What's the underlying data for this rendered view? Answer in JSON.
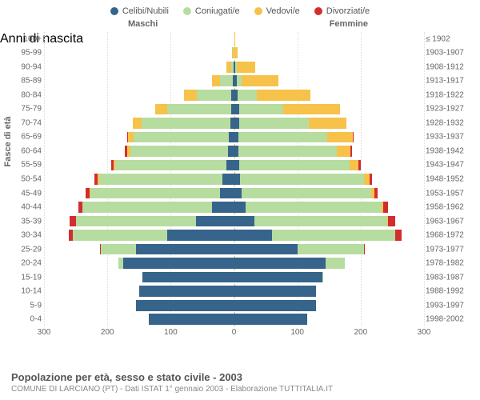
{
  "legend": [
    {
      "label": "Celibi/Nubili",
      "color": "#36648b"
    },
    {
      "label": "Coniugati/e",
      "color": "#b7dca0"
    },
    {
      "label": "Vedovi/e",
      "color": "#f7c24a"
    },
    {
      "label": "Divorziati/e",
      "color": "#d22e2e"
    }
  ],
  "header": {
    "male": "Maschi",
    "female": "Femmine"
  },
  "axis": {
    "left_title": "Fasce di età",
    "right_title": "Anni di nascita",
    "x_max": 300,
    "x_ticks_left": [
      "300",
      "200",
      "100",
      "0"
    ],
    "x_ticks_right": [
      "0",
      "100",
      "200",
      "300"
    ]
  },
  "colors": {
    "single": "#36648b",
    "married": "#b7dca0",
    "widowed": "#f7c24a",
    "divorced": "#d22e2e",
    "grid": "#dddddd",
    "center": "#f7b500"
  },
  "rows": [
    {
      "age": "100+",
      "birth": "≤ 1902",
      "m": {
        "s": 0,
        "c": 0,
        "w": 0,
        "d": 0
      },
      "f": {
        "s": 0,
        "c": 0,
        "w": 2,
        "d": 0
      }
    },
    {
      "age": "95-99",
      "birth": "1903-1907",
      "m": {
        "s": 0,
        "c": 1,
        "w": 2,
        "d": 0
      },
      "f": {
        "s": 0,
        "c": 0,
        "w": 6,
        "d": 0
      }
    },
    {
      "age": "90-94",
      "birth": "1908-1912",
      "m": {
        "s": 1,
        "c": 4,
        "w": 7,
        "d": 0
      },
      "f": {
        "s": 2,
        "c": 2,
        "w": 30,
        "d": 0
      }
    },
    {
      "age": "85-89",
      "birth": "1913-1917",
      "m": {
        "s": 2,
        "c": 20,
        "w": 13,
        "d": 0
      },
      "f": {
        "s": 4,
        "c": 8,
        "w": 58,
        "d": 0
      }
    },
    {
      "age": "80-84",
      "birth": "1918-1922",
      "m": {
        "s": 4,
        "c": 55,
        "w": 20,
        "d": 0
      },
      "f": {
        "s": 6,
        "c": 30,
        "w": 85,
        "d": 0
      }
    },
    {
      "age": "75-79",
      "birth": "1923-1927",
      "m": {
        "s": 5,
        "c": 100,
        "w": 20,
        "d": 0
      },
      "f": {
        "s": 8,
        "c": 70,
        "w": 90,
        "d": 0
      }
    },
    {
      "age": "70-74",
      "birth": "1928-1932",
      "m": {
        "s": 6,
        "c": 140,
        "w": 14,
        "d": 0
      },
      "f": {
        "s": 8,
        "c": 110,
        "w": 60,
        "d": 0
      }
    },
    {
      "age": "65-69",
      "birth": "1933-1937",
      "m": {
        "s": 8,
        "c": 150,
        "w": 9,
        "d": 2
      },
      "f": {
        "s": 7,
        "c": 140,
        "w": 40,
        "d": 2
      }
    },
    {
      "age": "60-64",
      "birth": "1938-1942",
      "m": {
        "s": 9,
        "c": 155,
        "w": 5,
        "d": 3
      },
      "f": {
        "s": 7,
        "c": 155,
        "w": 22,
        "d": 2
      }
    },
    {
      "age": "55-59",
      "birth": "1943-1947",
      "m": {
        "s": 12,
        "c": 175,
        "w": 3,
        "d": 4
      },
      "f": {
        "s": 8,
        "c": 175,
        "w": 14,
        "d": 3
      }
    },
    {
      "age": "50-54",
      "birth": "1948-1952",
      "m": {
        "s": 18,
        "c": 195,
        "w": 2,
        "d": 5
      },
      "f": {
        "s": 10,
        "c": 195,
        "w": 9,
        "d": 4
      }
    },
    {
      "age": "45-49",
      "birth": "1953-1957",
      "m": {
        "s": 22,
        "c": 205,
        "w": 1,
        "d": 6
      },
      "f": {
        "s": 12,
        "c": 205,
        "w": 5,
        "d": 5
      }
    },
    {
      "age": "40-44",
      "birth": "1958-1962",
      "m": {
        "s": 35,
        "c": 205,
        "w": 0,
        "d": 6
      },
      "f": {
        "s": 18,
        "c": 215,
        "w": 3,
        "d": 7
      }
    },
    {
      "age": "35-39",
      "birth": "1963-1967",
      "m": {
        "s": 60,
        "c": 190,
        "w": 0,
        "d": 9
      },
      "f": {
        "s": 32,
        "c": 210,
        "w": 1,
        "d": 12
      }
    },
    {
      "age": "30-34",
      "birth": "1968-1972",
      "m": {
        "s": 105,
        "c": 150,
        "w": 0,
        "d": 6
      },
      "f": {
        "s": 60,
        "c": 195,
        "w": 0,
        "d": 9
      }
    },
    {
      "age": "25-29",
      "birth": "1973-1977",
      "m": {
        "s": 155,
        "c": 55,
        "w": 0,
        "d": 2
      },
      "f": {
        "s": 100,
        "c": 105,
        "w": 0,
        "d": 2
      }
    },
    {
      "age": "20-24",
      "birth": "1978-1982",
      "m": {
        "s": 175,
        "c": 8,
        "w": 0,
        "d": 0
      },
      "f": {
        "s": 145,
        "c": 30,
        "w": 0,
        "d": 0
      }
    },
    {
      "age": "15-19",
      "birth": "1983-1987",
      "m": {
        "s": 145,
        "c": 0,
        "w": 0,
        "d": 0
      },
      "f": {
        "s": 140,
        "c": 1,
        "w": 0,
        "d": 0
      }
    },
    {
      "age": "10-14",
      "birth": "1988-1992",
      "m": {
        "s": 150,
        "c": 0,
        "w": 0,
        "d": 0
      },
      "f": {
        "s": 130,
        "c": 0,
        "w": 0,
        "d": 0
      }
    },
    {
      "age": "5-9",
      "birth": "1993-1997",
      "m": {
        "s": 155,
        "c": 0,
        "w": 0,
        "d": 0
      },
      "f": {
        "s": 130,
        "c": 0,
        "w": 0,
        "d": 0
      }
    },
    {
      "age": "0-4",
      "birth": "1998-2002",
      "m": {
        "s": 135,
        "c": 0,
        "w": 0,
        "d": 0
      },
      "f": {
        "s": 115,
        "c": 0,
        "w": 0,
        "d": 0
      }
    }
  ],
  "footer": {
    "title": "Popolazione per età, sesso e stato civile - 2003",
    "sub": "COMUNE DI LARCIANO (PT) - Dati ISTAT 1° gennaio 2003 - Elaborazione TUTTITALIA.IT"
  }
}
